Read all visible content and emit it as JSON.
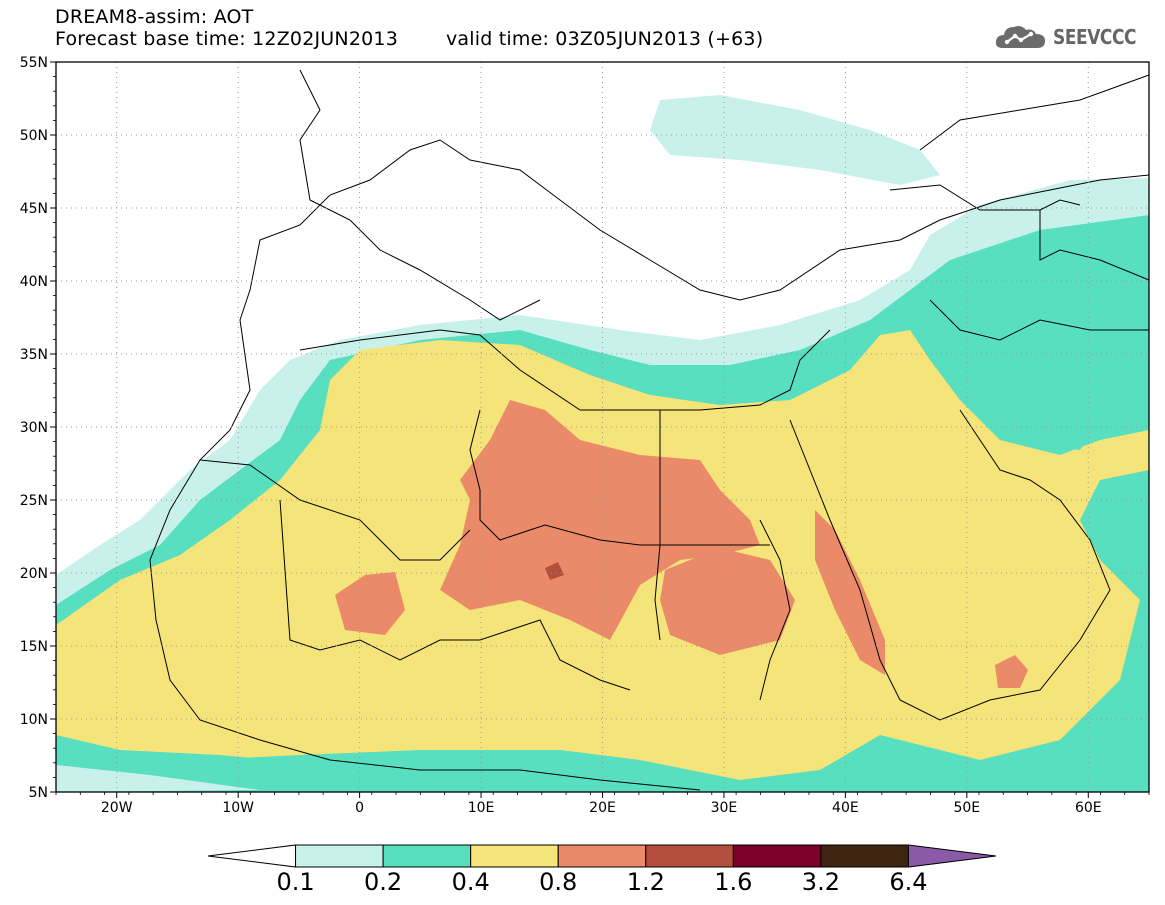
{
  "header": {
    "title": "DREAM8-assim: AOT",
    "base_time": "Forecast base time: 12Z02JUN2013",
    "valid_time": "valid time: 03Z05JUN2013 (+63)"
  },
  "logo": {
    "text": "SEEVCCC",
    "icon": "cloud-icon"
  },
  "map": {
    "lon_range": [
      -25,
      65
    ],
    "lat_range": [
      5,
      55
    ],
    "lat_ticks": [
      "55N",
      "50N",
      "45N",
      "40N",
      "35N",
      "30N",
      "25N",
      "20N",
      "15N",
      "10N",
      "5N"
    ],
    "lon_ticks": [
      "20W",
      "10W",
      "0",
      "10E",
      "20E",
      "30E",
      "40E",
      "50E",
      "60E"
    ],
    "grid": "dotted"
  },
  "colorbar": {
    "labels": [
      "0.1",
      "0.2",
      "0.4",
      "0.8",
      "1.2",
      "1.6",
      "3.2",
      "6.4"
    ],
    "colors": [
      "#ffffff",
      "#c9f1ec",
      "#57dfbf",
      "#f5e47a",
      "#eb8a68",
      "#b34f3c",
      "#7c0029",
      "#3f2511",
      "#8a5aa8"
    ]
  }
}
